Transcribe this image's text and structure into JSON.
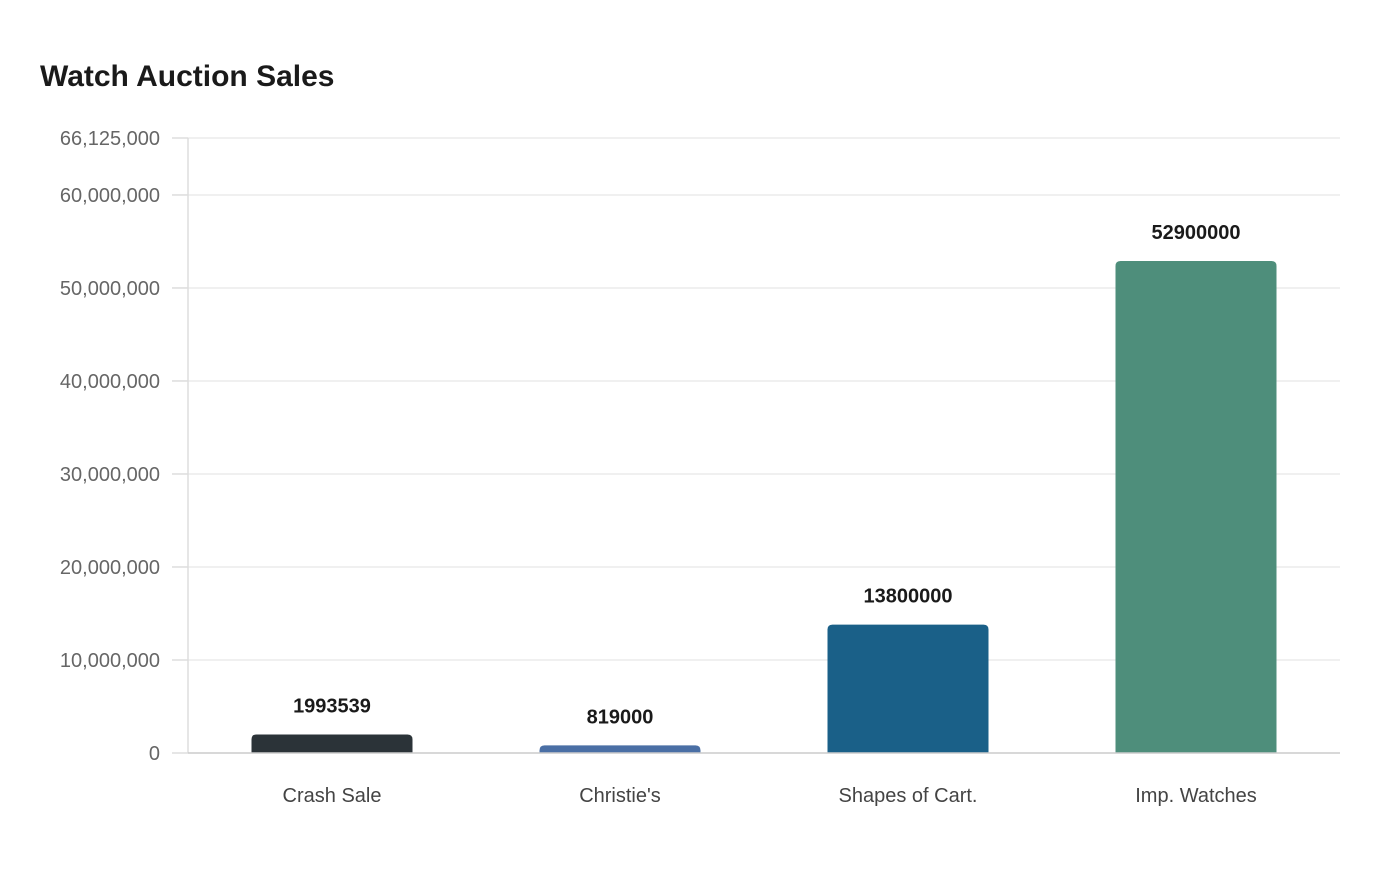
{
  "chart_data": {
    "type": "bar",
    "title": "Watch Auction Sales",
    "xlabel": "",
    "ylabel": "",
    "categories": [
      "Crash Sale",
      "Christie's",
      "Shapes of Cart.",
      "Imp. Watches"
    ],
    "values": [
      1993539,
      819000,
      13800000,
      52900000
    ],
    "data_labels": [
      "1993539",
      "819000",
      "13800000",
      "52900000"
    ],
    "colors": [
      "#2b3338",
      "#4a6fa5",
      "#1a6088",
      "#4e8e7b"
    ],
    "ylim": [
      0,
      66125000
    ],
    "yticks": [
      0,
      10000000,
      20000000,
      30000000,
      40000000,
      50000000,
      60000000,
      66125000
    ],
    "ytick_labels": [
      "0",
      "10,000,000",
      "20,000,000",
      "30,000,000",
      "40,000,000",
      "50,000,000",
      "60,000,000",
      "66,125,000"
    ],
    "grid": true,
    "legend": "none"
  }
}
